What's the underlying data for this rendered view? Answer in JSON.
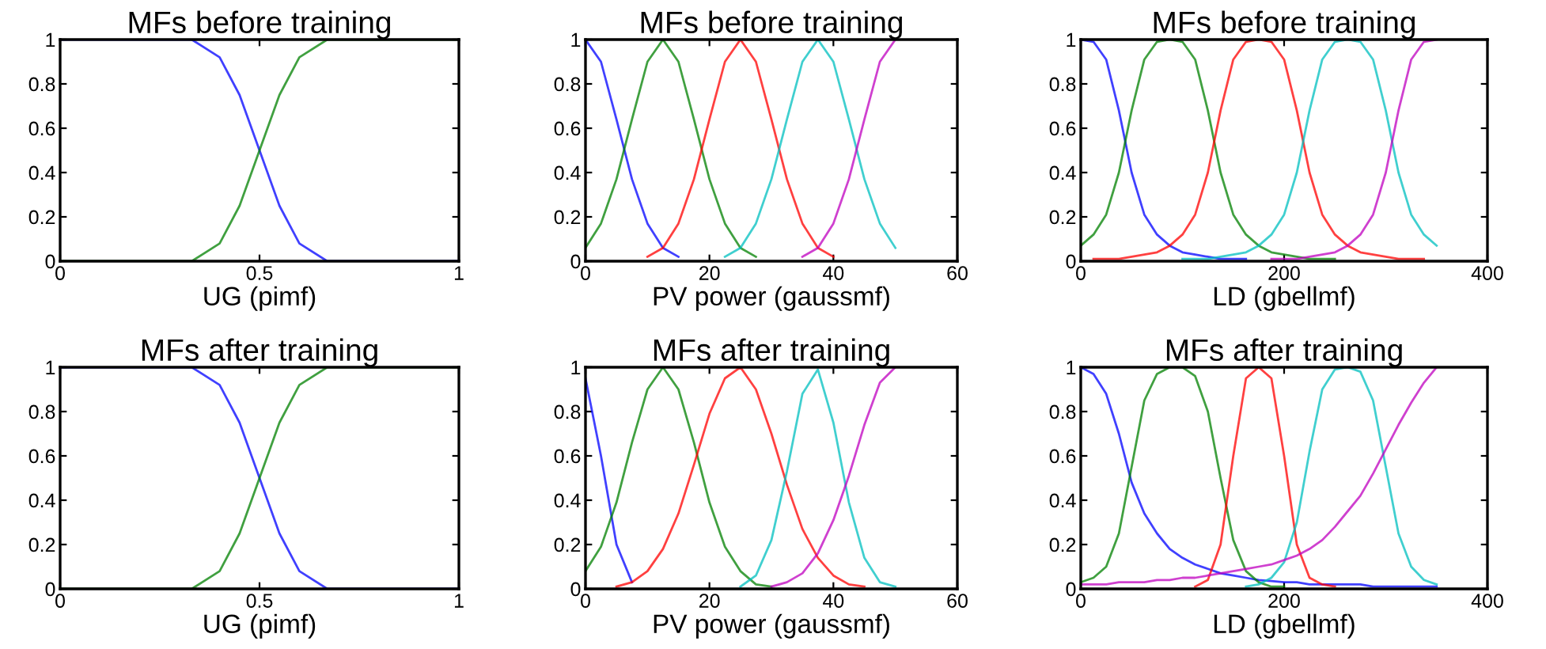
{
  "chart_data": [
    {
      "type": "line",
      "title": "MFs before training",
      "xlabel": "UG (pimf)",
      "x": [
        0,
        0.33,
        0.4,
        0.45,
        0.5,
        0.55,
        0.6,
        0.67,
        1
      ],
      "xlim": [
        0,
        1
      ],
      "xticks": [
        0,
        0.5,
        1
      ],
      "ylim": [
        0,
        1
      ],
      "yticks": [
        0,
        0.2,
        0.4,
        0.6,
        0.8,
        1
      ],
      "grid": false,
      "legend": false,
      "series": [
        {
          "color": "#0000ff",
          "values": [
            1,
            1,
            0.92,
            0.75,
            0.5,
            0.25,
            0.08,
            0,
            0
          ]
        },
        {
          "color": "#008000",
          "values": [
            0,
            0,
            0.08,
            0.25,
            0.5,
            0.75,
            0.92,
            1,
            1
          ]
        }
      ]
    },
    {
      "type": "line",
      "title": "MFs before training",
      "xlabel": "PV power (gaussmf)",
      "x": [
        0,
        2.5,
        5,
        7.5,
        10,
        12.5,
        15,
        17.5,
        20,
        22.5,
        25,
        27.5,
        30,
        32.5,
        35,
        37.5,
        40,
        42.5,
        45,
        47.5,
        50
      ],
      "xlim": [
        0,
        60
      ],
      "xticks": [
        0,
        20,
        40,
        60
      ],
      "ylim": [
        0,
        1
      ],
      "yticks": [
        0,
        0.2,
        0.4,
        0.6,
        0.8,
        1
      ],
      "grid": false,
      "legend": false,
      "series": [
        {
          "color": "#0000ff",
          "values": [
            1,
            0.9,
            0.64,
            0.37,
            0.17,
            0.06,
            0.02,
            null,
            null,
            null,
            null,
            null,
            null,
            null,
            null,
            null,
            null,
            null,
            null,
            null,
            null
          ]
        },
        {
          "color": "#008000",
          "values": [
            0.06,
            0.17,
            0.37,
            0.64,
            0.9,
            1,
            0.9,
            0.64,
            0.37,
            0.17,
            0.06,
            0.02,
            null,
            null,
            null,
            null,
            null,
            null,
            null,
            null,
            null
          ]
        },
        {
          "color": "#ff0000",
          "values": [
            null,
            null,
            null,
            null,
            0.02,
            0.06,
            0.17,
            0.37,
            0.64,
            0.9,
            1,
            0.9,
            0.64,
            0.37,
            0.17,
            0.06,
            0.02,
            null,
            null,
            null,
            null
          ]
        },
        {
          "color": "#00bfbf",
          "values": [
            null,
            null,
            null,
            null,
            null,
            null,
            null,
            null,
            null,
            0.02,
            0.06,
            0.17,
            0.37,
            0.64,
            0.9,
            1,
            0.9,
            0.64,
            0.37,
            0.17,
            0.06
          ]
        },
        {
          "color": "#bf00bf",
          "values": [
            null,
            null,
            null,
            null,
            null,
            null,
            null,
            null,
            null,
            null,
            null,
            null,
            null,
            null,
            0.02,
            0.06,
            0.17,
            0.37,
            0.64,
            0.9,
            1
          ]
        }
      ]
    },
    {
      "type": "line",
      "title": "MFs before training",
      "xlabel": "LD (gbellmf)",
      "x": [
        0,
        12.5,
        25,
        37.5,
        50,
        62.5,
        75,
        87.5,
        100,
        112.5,
        125,
        137.5,
        150,
        162.5,
        175,
        187.5,
        200,
        212.5,
        225,
        237.5,
        250,
        262.5,
        275,
        287.5,
        300,
        312.5,
        325,
        337.5,
        350
      ],
      "xlim": [
        0,
        400
      ],
      "xticks": [
        0,
        200,
        400
      ],
      "ylim": [
        0,
        1
      ],
      "yticks": [
        0,
        0.2,
        0.4,
        0.6,
        0.8,
        1
      ],
      "grid": false,
      "legend": false,
      "series": [
        {
          "color": "#0000ff",
          "values": [
            1,
            0.99,
            0.91,
            0.68,
            0.4,
            0.21,
            0.12,
            0.07,
            0.04,
            0.03,
            0.02,
            0.01,
            0.01,
            0.01,
            null,
            null,
            null,
            null,
            null,
            null,
            null,
            null,
            null,
            null,
            null,
            null,
            null,
            null,
            null
          ]
        },
        {
          "color": "#008000",
          "values": [
            0.07,
            0.12,
            0.21,
            0.4,
            0.68,
            0.91,
            0.99,
            1,
            0.99,
            0.91,
            0.68,
            0.4,
            0.21,
            0.12,
            0.07,
            0.04,
            0.03,
            0.02,
            0.01,
            0.01,
            0.01,
            null,
            null,
            null,
            null,
            null,
            null,
            null,
            null
          ]
        },
        {
          "color": "#ff0000",
          "values": [
            null,
            0.01,
            0.01,
            0.01,
            0.02,
            0.03,
            0.04,
            0.07,
            0.12,
            0.21,
            0.4,
            0.68,
            0.91,
            0.99,
            1,
            0.99,
            0.91,
            0.68,
            0.4,
            0.21,
            0.12,
            0.07,
            0.04,
            0.03,
            0.02,
            0.01,
            0.01,
            0.01,
            null
          ]
        },
        {
          "color": "#00bfbf",
          "values": [
            null,
            null,
            null,
            null,
            null,
            null,
            null,
            null,
            0.01,
            0.01,
            0.01,
            0.02,
            0.03,
            0.04,
            0.07,
            0.12,
            0.21,
            0.4,
            0.68,
            0.91,
            0.99,
            1,
            0.99,
            0.91,
            0.68,
            0.4,
            0.21,
            0.12,
            0.07
          ]
        },
        {
          "color": "#bf00bf",
          "values": [
            null,
            null,
            null,
            null,
            null,
            null,
            null,
            null,
            null,
            null,
            null,
            null,
            null,
            null,
            null,
            0.01,
            0.01,
            0.01,
            0.02,
            0.03,
            0.04,
            0.07,
            0.12,
            0.21,
            0.4,
            0.68,
            0.91,
            0.99,
            1
          ]
        }
      ]
    },
    {
      "type": "line",
      "title": "MFs after training",
      "xlabel": "UG (pimf)",
      "x": [
        0,
        0.33,
        0.4,
        0.45,
        0.5,
        0.55,
        0.6,
        0.67,
        1
      ],
      "xlim": [
        0,
        1
      ],
      "xticks": [
        0,
        0.5,
        1
      ],
      "ylim": [
        0,
        1
      ],
      "yticks": [
        0,
        0.2,
        0.4,
        0.6,
        0.8,
        1
      ],
      "grid": false,
      "legend": false,
      "series": [
        {
          "color": "#0000ff",
          "values": [
            1,
            1,
            0.92,
            0.75,
            0.5,
            0.25,
            0.08,
            0,
            0
          ]
        },
        {
          "color": "#008000",
          "values": [
            0,
            0,
            0.08,
            0.25,
            0.5,
            0.75,
            0.92,
            1,
            1
          ]
        }
      ]
    },
    {
      "type": "line",
      "title": "MFs after training",
      "xlabel": "PV power (gaussmf)",
      "x": [
        0,
        2.5,
        5,
        7.5,
        10,
        12.5,
        15,
        17.5,
        20,
        22.5,
        25,
        27.5,
        30,
        32.5,
        35,
        37.5,
        40,
        42.5,
        45,
        47.5,
        50
      ],
      "xlim": [
        0,
        60
      ],
      "xticks": [
        0,
        20,
        40,
        60
      ],
      "ylim": [
        0,
        1
      ],
      "yticks": [
        0,
        0.2,
        0.4,
        0.6,
        0.8,
        1
      ],
      "grid": false,
      "legend": false,
      "series": [
        {
          "color": "#0000ff",
          "values": [
            0.95,
            0.6,
            0.2,
            0.03,
            null,
            null,
            null,
            null,
            null,
            null,
            null,
            null,
            null,
            null,
            null,
            null,
            null,
            null,
            null,
            null,
            null
          ]
        },
        {
          "color": "#008000",
          "values": [
            0.08,
            0.19,
            0.39,
            0.66,
            0.9,
            1,
            0.9,
            0.66,
            0.39,
            0.19,
            0.08,
            0.02,
            0.01,
            null,
            null,
            null,
            null,
            null,
            null,
            null,
            null
          ]
        },
        {
          "color": "#ff0000",
          "values": [
            null,
            null,
            0.01,
            0.03,
            0.08,
            0.18,
            0.34,
            0.56,
            0.79,
            0.95,
            1,
            0.9,
            0.7,
            0.47,
            0.27,
            0.14,
            0.06,
            0.02,
            0.01,
            null,
            null
          ]
        },
        {
          "color": "#00bfbf",
          "values": [
            null,
            null,
            null,
            null,
            null,
            null,
            null,
            null,
            null,
            null,
            0.01,
            0.06,
            0.22,
            0.53,
            0.88,
            0.99,
            0.75,
            0.39,
            0.14,
            0.03,
            0.01
          ]
        },
        {
          "color": "#bf00bf",
          "values": [
            null,
            null,
            null,
            null,
            null,
            null,
            null,
            null,
            null,
            null,
            null,
            null,
            0.01,
            0.03,
            0.07,
            0.16,
            0.31,
            0.51,
            0.74,
            0.93,
            1
          ]
        }
      ]
    },
    {
      "type": "line",
      "title": "MFs after training",
      "xlabel": "LD (gbellmf)",
      "x": [
        0,
        12.5,
        25,
        37.5,
        50,
        62.5,
        75,
        87.5,
        100,
        112.5,
        125,
        137.5,
        150,
        162.5,
        175,
        187.5,
        200,
        212.5,
        225,
        237.5,
        250,
        262.5,
        275,
        287.5,
        300,
        312.5,
        325,
        337.5,
        350
      ],
      "xlim": [
        0,
        400
      ],
      "xticks": [
        0,
        200,
        400
      ],
      "ylim": [
        0,
        1
      ],
      "yticks": [
        0,
        0.2,
        0.4,
        0.6,
        0.8,
        1
      ],
      "grid": false,
      "legend": false,
      "series": [
        {
          "color": "#0000ff",
          "values": [
            1,
            0.97,
            0.88,
            0.7,
            0.48,
            0.34,
            0.25,
            0.18,
            0.14,
            0.11,
            0.09,
            0.07,
            0.06,
            0.05,
            0.04,
            0.035,
            0.03,
            0.03,
            0.02,
            0.02,
            0.02,
            0.02,
            0.02,
            0.01,
            0.01,
            0.01,
            0.01,
            0.01,
            0.01
          ]
        },
        {
          "color": "#008000",
          "values": [
            0.03,
            0.05,
            0.1,
            0.25,
            0.55,
            0.85,
            0.97,
            1,
            1,
            0.96,
            0.8,
            0.5,
            0.22,
            0.08,
            0.03,
            0.01,
            0.01,
            null,
            null,
            null,
            null,
            null,
            null,
            null,
            null,
            null,
            null,
            null,
            null
          ]
        },
        {
          "color": "#ff0000",
          "values": [
            null,
            null,
            null,
            null,
            null,
            null,
            null,
            null,
            null,
            0.01,
            0.04,
            0.2,
            0.6,
            0.95,
            1,
            0.95,
            0.6,
            0.2,
            0.05,
            0.02,
            0.01,
            null,
            null,
            null,
            null,
            null,
            null,
            null,
            null
          ]
        },
        {
          "color": "#00bfbf",
          "values": [
            null,
            null,
            null,
            null,
            null,
            null,
            null,
            null,
            null,
            null,
            null,
            null,
            null,
            0.01,
            0.02,
            0.05,
            0.12,
            0.3,
            0.62,
            0.9,
            0.99,
            1,
            0.98,
            0.85,
            0.55,
            0.25,
            0.1,
            0.04,
            0.02
          ]
        },
        {
          "color": "#bf00bf",
          "values": [
            0.02,
            0.02,
            0.02,
            0.03,
            0.03,
            0.03,
            0.04,
            0.04,
            0.05,
            0.05,
            0.06,
            0.07,
            0.08,
            0.09,
            0.1,
            0.11,
            0.13,
            0.15,
            0.18,
            0.22,
            0.28,
            0.35,
            0.42,
            0.52,
            0.63,
            0.74,
            0.84,
            0.93,
            1
          ]
        }
      ]
    }
  ]
}
